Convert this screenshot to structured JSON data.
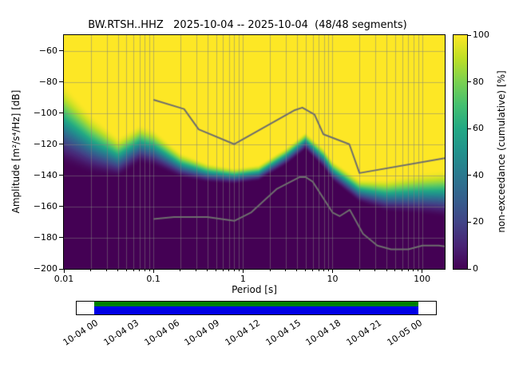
{
  "figure": {
    "title": "BW.RTSH..HHZ   2025-10-04 -- 2025-10-04  (48/48 segments)",
    "xlabel": "Period [s]",
    "ylabel": "Amplitude [m²/s⁴/Hz] [dB]",
    "colorbar_label": "non-exceedance (cumulative) [%]"
  },
  "chart_data": {
    "type": "heatmap",
    "title": "BW.RTSH..HHZ   2025-10-04 -- 2025-10-04  (48/48 segments)",
    "xlabel": "Period [s]",
    "ylabel": "Amplitude [m²/s⁴/Hz] [dB]",
    "x_scale": "log",
    "x_range": [
      0.01,
      179
    ],
    "y_range": [
      -200,
      -50
    ],
    "x_ticks": {
      "values": [
        0.01,
        0.1,
        1,
        10,
        100
      ],
      "labels": [
        "0.01",
        "0.1",
        "1",
        "10",
        "100"
      ]
    },
    "y_ticks": {
      "values": [
        -60,
        -80,
        -100,
        -120,
        -140,
        -160,
        -180,
        -200
      ],
      "labels": [
        "−60",
        "−80",
        "−100",
        "−120",
        "−140",
        "−160",
        "−180",
        "−200"
      ]
    },
    "grid": {
      "color": "rgba(128,128,128,0.5)",
      "y_step": 20
    },
    "colormap": [
      {
        "pos": 0.0,
        "color": "#440154"
      },
      {
        "pos": 0.1,
        "color": "#482475"
      },
      {
        "pos": 0.2,
        "color": "#414487"
      },
      {
        "pos": 0.3,
        "color": "#355f8d"
      },
      {
        "pos": 0.4,
        "color": "#2a788e"
      },
      {
        "pos": 0.5,
        "color": "#21918c"
      },
      {
        "pos": 0.6,
        "color": "#22a884"
      },
      {
        "pos": 0.7,
        "color": "#44bf70"
      },
      {
        "pos": 0.8,
        "color": "#7ad151"
      },
      {
        "pos": 0.9,
        "color": "#bddf26"
      },
      {
        "pos": 1.0,
        "color": "#fde725"
      }
    ],
    "colorbar_ticks": {
      "values": [
        0,
        20,
        40,
        60,
        80,
        100
      ],
      "labels": [
        "0",
        "20",
        "40",
        "60",
        "80",
        "100"
      ]
    },
    "distribution": {
      "comment": "cumulative non-exceedance transition vs period: center dB and full 0-100% width dB",
      "periods": [
        0.01,
        0.02,
        0.04,
        0.07,
        0.1,
        0.2,
        0.4,
        0.8,
        1.5,
        3,
        5,
        8,
        10,
        20,
        40,
        100,
        179
      ],
      "center_db": [
        -107.5,
        -120,
        -128.5,
        -120,
        -122.5,
        -133.5,
        -138.5,
        -140.5,
        -138.5,
        -128,
        -118,
        -129,
        -137,
        -150,
        -153,
        -152,
        -152
      ],
      "width_db": [
        55,
        40,
        27,
        26,
        25,
        17,
        13,
        11,
        11,
        12,
        12,
        14,
        14,
        16,
        22,
        28,
        32
      ]
    },
    "noise_models": {
      "color": "#6e6e6e",
      "nhnm": [
        [
          0.1,
          -91.5
        ],
        [
          0.22,
          -97.4
        ],
        [
          0.32,
          -110.5
        ],
        [
          0.8,
          -120.0
        ],
        [
          3.8,
          -98.1
        ],
        [
          4.6,
          -96.5
        ],
        [
          6.3,
          -101.0
        ],
        [
          7.9,
          -113.6
        ],
        [
          15.4,
          -120.0
        ],
        [
          20,
          -138.5
        ],
        [
          179,
          -129.0
        ]
      ],
      "nlnm": [
        [
          0.1,
          -168.0
        ],
        [
          0.17,
          -166.7
        ],
        [
          0.4,
          -166.7
        ],
        [
          0.8,
          -169.2
        ],
        [
          1.24,
          -163.7
        ],
        [
          2.4,
          -148.6
        ],
        [
          4.3,
          -141.1
        ],
        [
          5.0,
          -141.1
        ],
        [
          6.0,
          -144.0
        ],
        [
          10.0,
          -163.8
        ],
        [
          12.0,
          -166.2
        ],
        [
          15.6,
          -162.1
        ],
        [
          21.9,
          -177.5
        ],
        [
          31.6,
          -185.0
        ],
        [
          45.0,
          -187.5
        ],
        [
          70.0,
          -187.5
        ],
        [
          101.0,
          -185.0
        ],
        [
          154.0,
          -185.0
        ],
        [
          179.0,
          -185.6
        ]
      ]
    },
    "timeline": {
      "labels": [
        "10-04 00",
        "10-04 03",
        "10-04 06",
        "10-04 09",
        "10-04 12",
        "10-04 15",
        "10-04 18",
        "10-04 21",
        "10-05 00"
      ],
      "bar_colors": {
        "covered_top": "#008000",
        "covered_bottom": "#0000e6",
        "background": "#ffffff"
      },
      "coverage_span": [
        0.049,
        0.951
      ]
    }
  }
}
